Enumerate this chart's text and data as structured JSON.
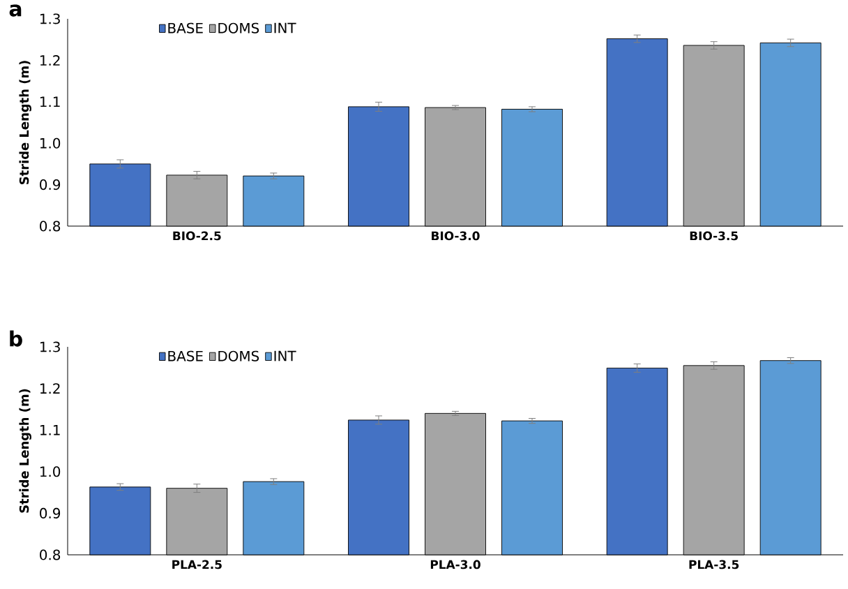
{
  "chart_data": [
    {
      "type": "bar",
      "title": "a",
      "ylabel": "Stride Length (m)",
      "categories": [
        "BIO-2.5",
        "BIO-3.0",
        "BIO-3.5"
      ],
      "ylim": [
        0.8,
        1.3
      ],
      "yticks": [
        0.8,
        0.9,
        {
          "value": 1.0,
          "label": "1.0"
        },
        1.1,
        1.2,
        1.3
      ],
      "legend": "top left",
      "grid": false,
      "series": [
        {
          "name": "BASE",
          "color": "#4472c4",
          "values": [
            0.95,
            1.088,
            1.252
          ],
          "errors": [
            0.01,
            0.011,
            0.009
          ]
        },
        {
          "name": "DOMS",
          "color": "#a5a5a5",
          "values": [
            0.923,
            1.086,
            1.236
          ],
          "errors": [
            0.009,
            0.005,
            0.009
          ]
        },
        {
          "name": "INT",
          "color": "#5b9bd5",
          "values": [
            0.921,
            1.082,
            1.242
          ],
          "errors": [
            0.007,
            0.006,
            0.009
          ]
        }
      ]
    },
    {
      "type": "bar",
      "title": "b",
      "ylabel": "Stride Length (m)",
      "categories": [
        "PLA-2.5",
        "PLA-3.0",
        "PLA-3.5"
      ],
      "ylim": [
        0.8,
        1.3
      ],
      "yticks": [
        0.8,
        0.9,
        {
          "value": 1.0,
          "label": "1.0"
        },
        1.1,
        1.2,
        1.3
      ],
      "legend": "top left",
      "grid": false,
      "series": [
        {
          "name": "BASE",
          "color": "#4472c4",
          "values": [
            0.963,
            1.124,
            1.249
          ],
          "errors": [
            0.008,
            0.01,
            0.01
          ]
        },
        {
          "name": "DOMS",
          "color": "#a5a5a5",
          "values": [
            0.96,
            1.14,
            1.255
          ],
          "errors": [
            0.01,
            0.005,
            0.009
          ]
        },
        {
          "name": "INT",
          "color": "#5b9bd5",
          "values": [
            0.976,
            1.122,
            1.267
          ],
          "errors": [
            0.007,
            0.006,
            0.007
          ]
        }
      ]
    }
  ]
}
